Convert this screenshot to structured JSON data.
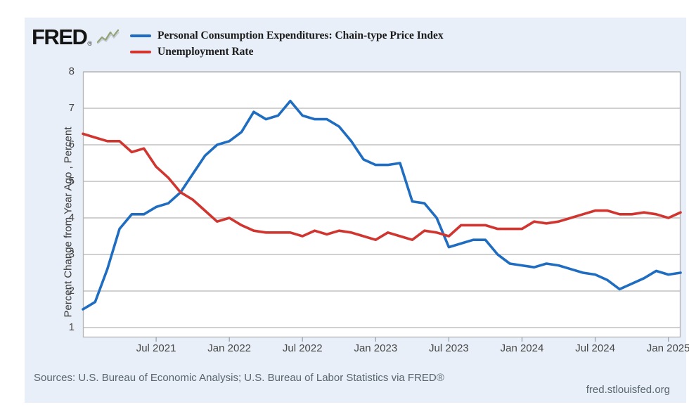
{
  "header": {
    "logo_text": "FRED",
    "logo_reg": "®",
    "logo_icon": "line-chart-squiggle-icon",
    "legend": [
      {
        "label": "Personal Consumption Expenditures: Chain-type Price Index",
        "color": "#1f6dc1"
      },
      {
        "label": "Unemployment Rate",
        "color": "#d0352f"
      }
    ]
  },
  "footer": {
    "sources": "Sources: U.S. Bureau of Economic Analysis; U.S. Bureau of Labor Statistics via FRED®",
    "site": "fred.stlouisfed.org"
  },
  "colors": {
    "card_background": "#e8eff8",
    "plot_background": "#ffffff",
    "gridline": "#b5b5b5",
    "tick_mark": "#9aa4ae",
    "axis_text": "#474747",
    "pce_line": "#1f6dc1",
    "unemployment_line": "#d0352f"
  },
  "chart_data": {
    "type": "line",
    "title": "",
    "xlabel": "",
    "ylabel": "Percent Change from Year Ago , Percent",
    "ylim": [
      0.73,
      8
    ],
    "yticks": [
      1,
      2,
      3,
      4,
      5,
      6,
      7,
      8
    ],
    "grid": "horizontal",
    "legend_position": "top-left",
    "x_unit": "month",
    "x_range": [
      "2021-01",
      "2025-02"
    ],
    "x_tick_labels": [
      "Jul 2021",
      "Jan 2022",
      "Jul 2022",
      "Jan 2023",
      "Jul 2023",
      "Jan 2024",
      "Jul 2024",
      "Jan 2025"
    ],
    "x_tick_month_indices": [
      6,
      12,
      18,
      24,
      30,
      36,
      42,
      48
    ],
    "series": [
      {
        "name": "Personal Consumption Expenditures: Chain-type Price Index",
        "color": "#1f6dc1",
        "values": [
          1.5,
          1.7,
          2.6,
          3.7,
          4.1,
          4.1,
          4.3,
          4.4,
          4.7,
          5.2,
          5.7,
          6.0,
          6.1,
          6.35,
          6.9,
          6.7,
          6.8,
          7.2,
          6.8,
          6.7,
          6.7,
          6.5,
          6.1,
          5.6,
          5.45,
          5.45,
          5.5,
          4.45,
          4.4,
          4.0,
          3.2,
          3.3,
          3.4,
          3.4,
          3.0,
          2.75,
          2.7,
          2.65,
          2.75,
          2.7,
          2.6,
          2.5,
          2.45,
          2.3,
          2.05,
          2.2,
          2.35,
          2.55,
          2.45,
          2.5
        ]
      },
      {
        "name": "Unemployment Rate",
        "color": "#d0352f",
        "values": [
          6.3,
          6.2,
          6.1,
          6.1,
          5.8,
          5.9,
          5.4,
          5.1,
          4.7,
          4.5,
          4.2,
          3.9,
          4.0,
          3.8,
          3.65,
          3.6,
          3.6,
          3.6,
          3.5,
          3.65,
          3.55,
          3.65,
          3.6,
          3.5,
          3.4,
          3.6,
          3.5,
          3.4,
          3.65,
          3.6,
          3.5,
          3.8,
          3.8,
          3.8,
          3.7,
          3.7,
          3.7,
          3.9,
          3.85,
          3.9,
          4.0,
          4.1,
          4.2,
          4.2,
          4.1,
          4.1,
          4.15,
          4.1,
          4.0,
          4.15
        ]
      }
    ]
  }
}
